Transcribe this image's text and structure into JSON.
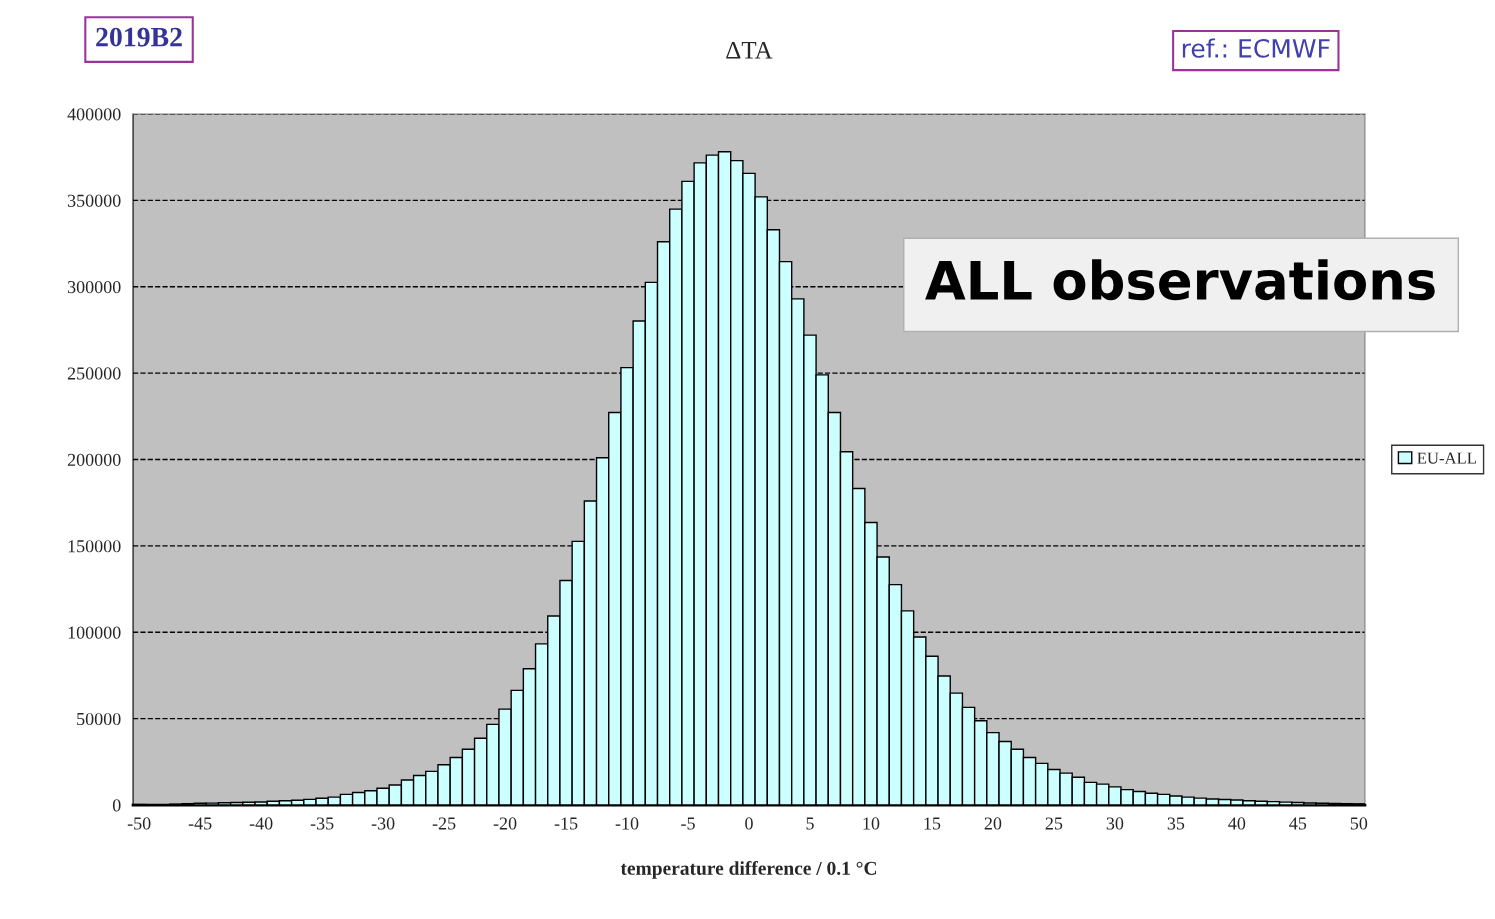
{
  "chart_data": {
    "type": "histogram",
    "title": "ΔTA",
    "xlabel": "temperature difference / 0.1 °C",
    "annotations": [
      "2019B2",
      "ref.: ECMWF",
      "ALL observations"
    ],
    "bins": [
      -50.5,
      -49.5,
      -48.5,
      -47.5,
      -46.5,
      -45.5,
      -44.5,
      -43.5,
      -42.5,
      -41.5,
      -40.5,
      -39.5,
      -38.5,
      -37.5,
      -36.5,
      -35.5,
      -34.5,
      -33.5,
      -32.5,
      -31.5,
      -30.5,
      -29.5,
      -28.5,
      -27.5,
      -26.5,
      -25.5,
      -24.5,
      -23.5,
      -22.5,
      -21.5,
      -20.5,
      -19.5,
      -18.5,
      -17.5,
      -16.5,
      -15.5,
      -14.5,
      -13.5,
      -12.5,
      -11.5,
      -10.5,
      -9.5,
      -8.5,
      -7.5,
      -6.5,
      -5.5,
      -4.5,
      -3.5,
      -2.5,
      -1.5,
      -0.5,
      0.5,
      1.5,
      2.5,
      3.5,
      4.5,
      5.5,
      6.5,
      7.5,
      8.5,
      9.5,
      10.5,
      11.5,
      12.5,
      13.5,
      14.5,
      15.5,
      16.5,
      17.5,
      18.5,
      19.5,
      20.5,
      21.5,
      22.5,
      23.5,
      24.5,
      25.5,
      26.5,
      27.5,
      28.5,
      29.5,
      30.5,
      31.5,
      32.5,
      33.5,
      34.5,
      35.5,
      36.5,
      37.5,
      38.5,
      39.5,
      40.5,
      41.5,
      42.5,
      43.5,
      44.5,
      45.5,
      46.5,
      47.5,
      48.5,
      49.5,
      50.5
    ],
    "series": [
      {
        "name": "EU-ALL",
        "color": "#ccffff",
        "values": [
          300,
          null,
          null,
          500,
          800,
          1000,
          1100,
          1300,
          1500,
          1600,
          1800,
          2200,
          2500,
          2800,
          3300,
          3900,
          4600,
          6200,
          7300,
          8300,
          9700,
          11600,
          14500,
          17100,
          19500,
          23300,
          27500,
          32300,
          38700,
          46700,
          55500,
          66400,
          78900,
          93300,
          109400,
          130000,
          152600,
          176000,
          201000,
          227200,
          253200,
          280200,
          302500,
          326000,
          344900,
          361000,
          371700,
          376200,
          378100,
          373000,
          365600,
          352000,
          333000,
          314500,
          293000,
          272000,
          249000,
          227200,
          204500,
          183200,
          163500,
          143600,
          127600,
          112400,
          97300,
          86100,
          74700,
          64800,
          56500,
          48800,
          41900,
          36800,
          32300,
          27500,
          24100,
          20600,
          18500,
          16100,
          13100,
          12100,
          10500,
          8900,
          7800,
          6800,
          6200,
          5200,
          4600,
          4000,
          3500,
          3200,
          2900,
          2500,
          2200,
          2000,
          1700,
          1500,
          1200,
          1000,
          900,
          800,
          700
        ]
      }
    ],
    "xlim": [
      -50.5,
      50.5
    ],
    "xticks": [
      -50,
      -45,
      -40,
      -35,
      -30,
      -25,
      -20,
      -15,
      -10,
      -5,
      0,
      5,
      10,
      15,
      20,
      25,
      30,
      35,
      40,
      45,
      50
    ],
    "ylim": [
      0,
      400000
    ],
    "yticks": [
      0,
      50000,
      100000,
      150000,
      200000,
      250000,
      300000,
      350000,
      400000
    ],
    "grid": "y",
    "legend": "right"
  }
}
